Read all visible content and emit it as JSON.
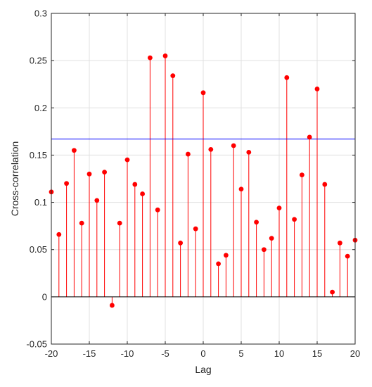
{
  "chart_data": {
    "type": "stem",
    "xlabel": "Lag",
    "ylabel": "Cross-correlation",
    "xlim": [
      -20,
      20
    ],
    "ylim": [
      -0.05,
      0.3
    ],
    "grid": true,
    "x_ticks": [
      -20,
      -15,
      -10,
      -5,
      0,
      5,
      10,
      15,
      20
    ],
    "y_ticks": [
      -0.05,
      0,
      0.05,
      0.1,
      0.15,
      0.2,
      0.25,
      0.3
    ],
    "x_tick_labels": [
      "-20",
      "-15",
      "-10",
      "-5",
      "0",
      "5",
      "10",
      "15",
      "20"
    ],
    "y_tick_labels": [
      "-0.05",
      "0",
      "0.05",
      "0.1",
      "0.15",
      "0.2",
      "0.25",
      "0.3"
    ],
    "threshold": 0.167,
    "x": [
      -20,
      -19,
      -18,
      -17,
      -16,
      -15,
      -14,
      -13,
      -12,
      -11,
      -10,
      -9,
      -8,
      -7,
      -6,
      -5,
      -4,
      -3,
      -2,
      -1,
      0,
      1,
      2,
      3,
      4,
      5,
      6,
      7,
      8,
      9,
      10,
      11,
      12,
      13,
      14,
      15,
      16,
      17,
      18,
      19,
      20
    ],
    "values": [
      0.111,
      0.066,
      0.12,
      0.155,
      0.078,
      0.13,
      0.102,
      0.132,
      -0.009,
      0.078,
      0.145,
      0.119,
      0.109,
      0.253,
      0.092,
      0.255,
      0.234,
      0.057,
      0.151,
      0.072,
      0.216,
      0.156,
      0.035,
      0.044,
      0.16,
      0.114,
      0.153,
      0.079,
      0.05,
      0.062,
      0.094,
      0.232,
      0.082,
      0.129,
      0.169,
      0.22,
      0.119,
      0.005,
      0.057,
      0.043,
      0.06
    ],
    "colors": {
      "stem": "#ff0000",
      "threshold": "#0000ff",
      "baseline": "#000000",
      "grid": "#e0e0e0",
      "axis": "#262626"
    }
  }
}
